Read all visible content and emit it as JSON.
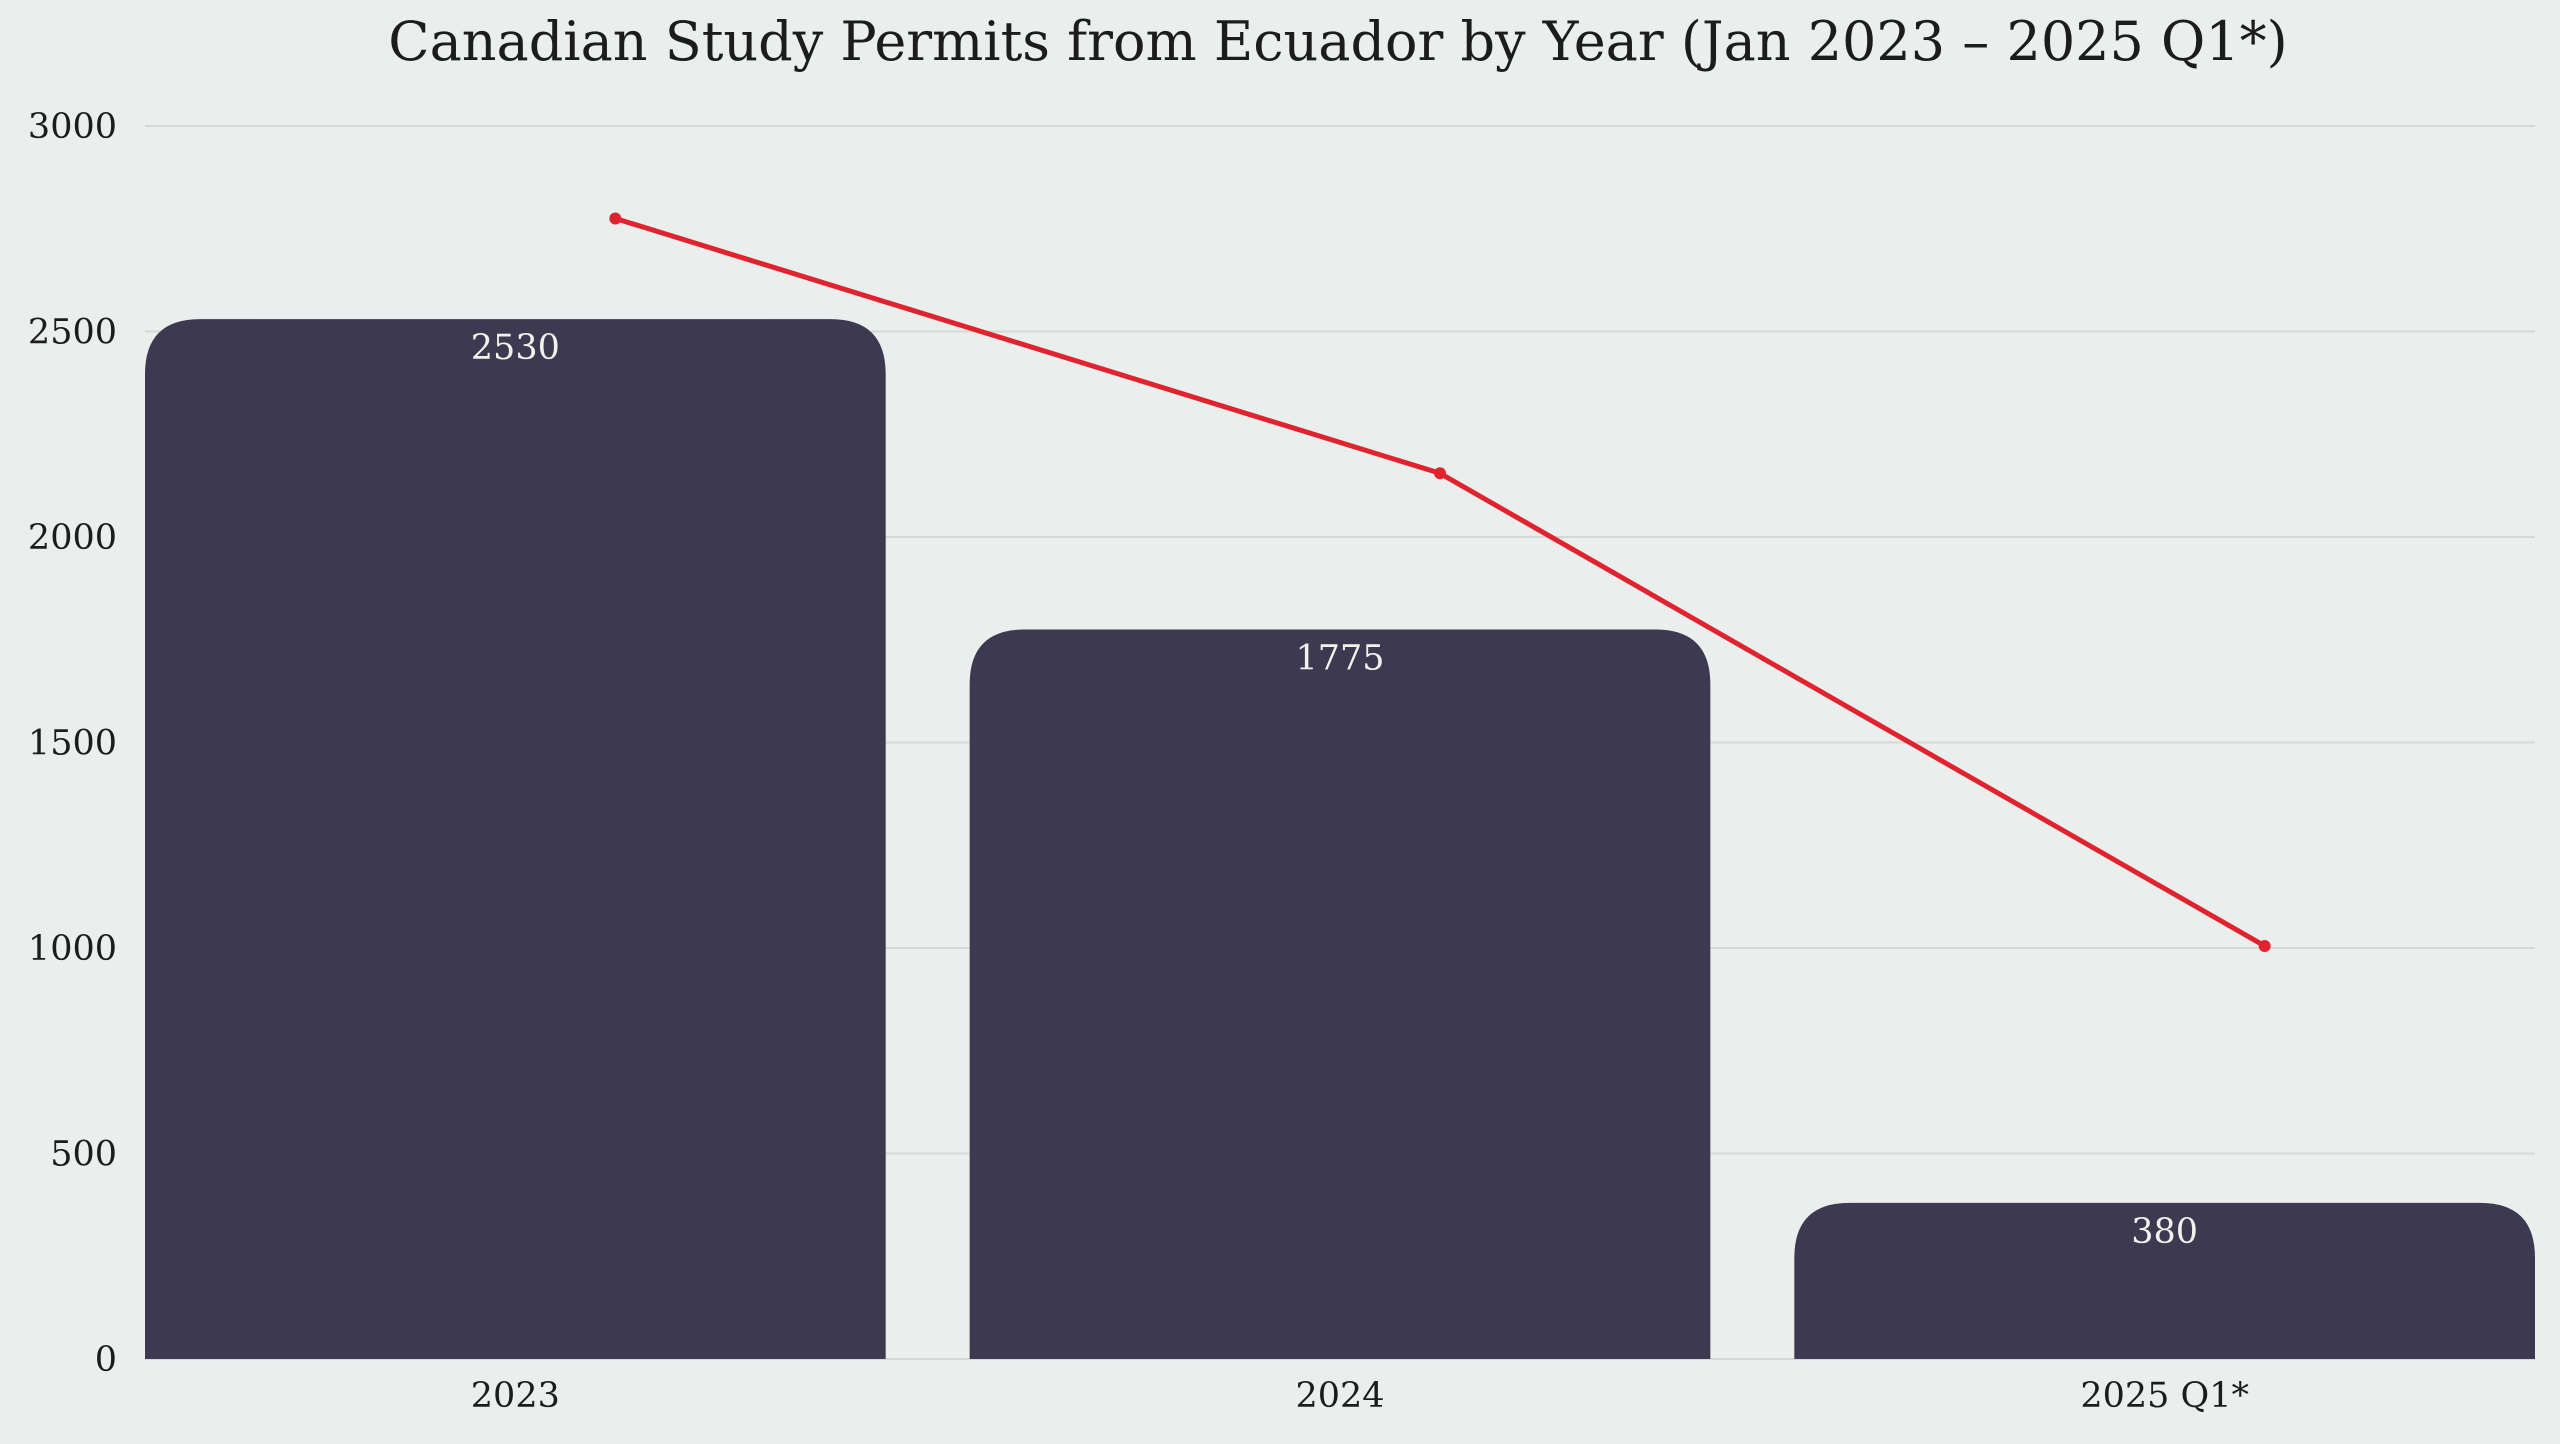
{
  "chart_data": {
    "type": "bar",
    "title": "Canadian Study Permits from Ecuador by Year (Jan 2023 – 2025 Q1*)",
    "categories": [
      "2023",
      "2024",
      "2025 Q1*"
    ],
    "series": [
      {
        "type": "bar",
        "values": [
          2530,
          1775,
          380
        ],
        "color": "#3d3951"
      },
      {
        "type": "line",
        "values": [
          2775,
          2155,
          1005
        ],
        "color": "#e0242f"
      }
    ],
    "data_labels": [
      "2530",
      "1775",
      "380"
    ],
    "yticks": [
      "0",
      "500",
      "1000",
      "1500",
      "2000",
      "2500",
      "3000"
    ],
    "ylim": [
      0,
      3000
    ],
    "grid": true,
    "legend": "none"
  }
}
